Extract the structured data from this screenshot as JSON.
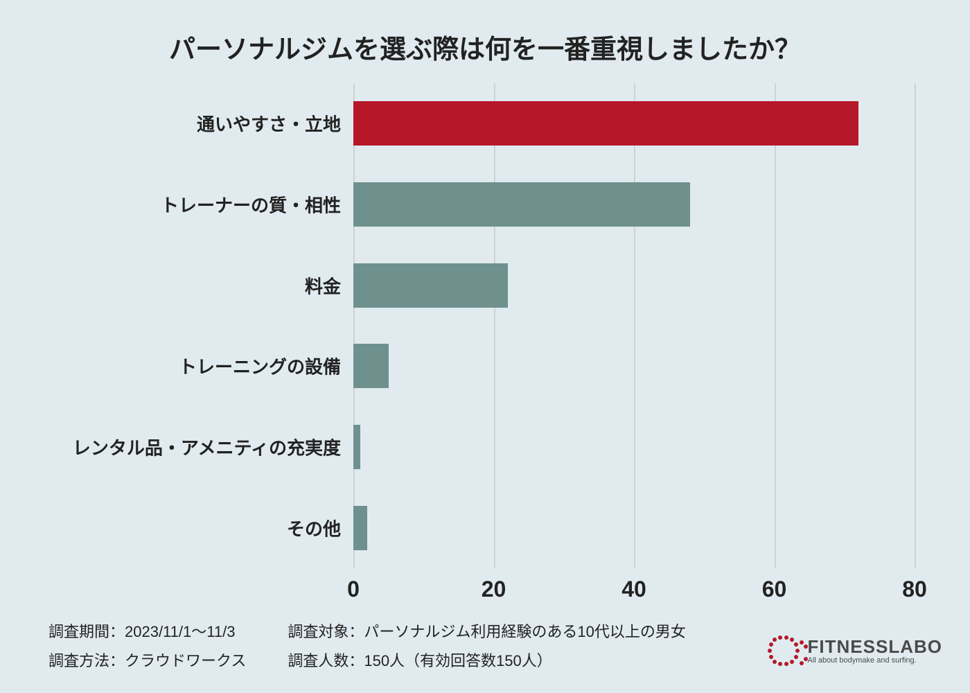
{
  "title": {
    "text": "パーソナルジムを選ぶ際は何を一番重視しましたか？",
    "fontsize": 38
  },
  "chart": {
    "type": "bar_horizontal",
    "categories": [
      "通いやすさ・立地",
      "トレーナーの質・相性",
      "料金",
      "トレーニングの設備",
      "レンタル品・アメニティの充実度",
      "その他"
    ],
    "values": [
      72,
      48,
      22,
      5,
      1,
      2
    ],
    "bar_colors": [
      "#b6182a",
      "#6e918e",
      "#6e918e",
      "#6e918e",
      "#6e918e",
      "#6e918e"
    ],
    "xlim": [
      0,
      80
    ],
    "xtick_step": 20,
    "xticks": [
      0,
      20,
      40,
      60,
      80
    ],
    "grid_color": "#cfd1d3",
    "background_color": "#e1ebef",
    "label_fontsize": 26,
    "tick_fontsize": 32,
    "bar_height_ratio": 0.55
  },
  "meta": {
    "period_label": "調査期間：2023/11/1〜11/3",
    "method_label": "調査方法：クラウドワークス",
    "target_label": "調査対象：パーソナルジム利用経験のある10代以上の男女",
    "count_label": "調査人数：150人（有効回答数150人）",
    "fontsize": 22
  },
  "logo": {
    "name": "FITNESSLABO",
    "tagline": "All about bodymake and surfing.",
    "dot_color": "#b6182a",
    "text_color": "#4a4a4a"
  }
}
